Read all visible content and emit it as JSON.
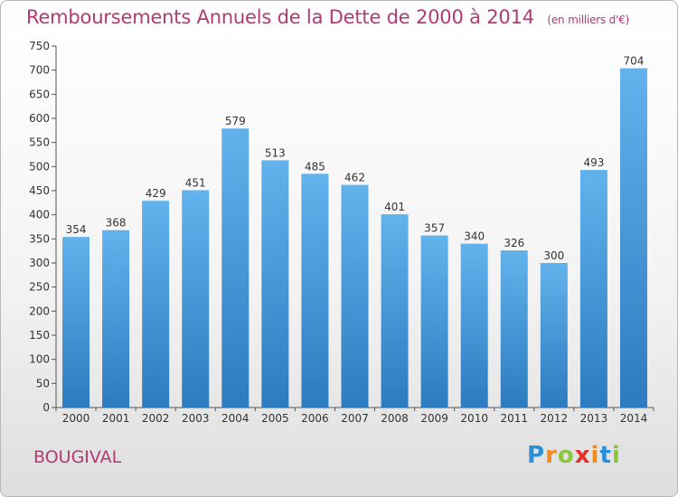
{
  "title": {
    "main": "Remboursements Annuels de la Dette de 2000 à 2014",
    "unit": "(en milliers d'€)"
  },
  "commune": "BOUGIVAL",
  "logo": {
    "letters": [
      "P",
      "r",
      "o",
      "x",
      "i",
      "t",
      "i"
    ],
    "colors": [
      "#2a8fd6",
      "#f28c1e",
      "#8cc63f",
      "#e5312a",
      "#f28c1e",
      "#2a8fd6",
      "#8cc63f"
    ]
  },
  "colors": {
    "bar_light": "#62b2ec",
    "bar_dark": "#2c7bc0",
    "text": "#b23a74"
  },
  "chart_data": {
    "type": "bar",
    "title": "Remboursements Annuels de la Dette de 2000 à 2014",
    "categories": [
      "2000",
      "2001",
      "2002",
      "2003",
      "2004",
      "2005",
      "2006",
      "2007",
      "2008",
      "2009",
      "2010",
      "2011",
      "2012",
      "2013",
      "2014"
    ],
    "values": [
      354,
      368,
      429,
      451,
      579,
      513,
      485,
      462,
      401,
      357,
      340,
      326,
      300,
      493,
      704
    ],
    "ylim": [
      0,
      750
    ],
    "yticks": [
      0,
      50,
      100,
      150,
      200,
      250,
      300,
      350,
      400,
      450,
      500,
      550,
      600,
      650,
      700,
      750
    ],
    "grid": false,
    "data_labels": true
  }
}
